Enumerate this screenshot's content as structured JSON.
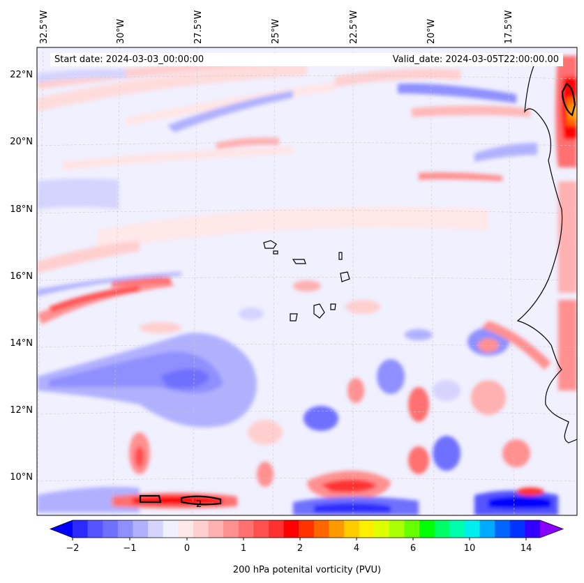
{
  "header": {
    "start_date": "Start date: 2024-03-03_00:00:00",
    "valid_date": "Valid_date: 2024-03-05T22:00:00.00"
  },
  "map": {
    "lon_labels": [
      "32.5°W",
      "30°W",
      "27.5°W",
      "25°W",
      "22.5°W",
      "20°W",
      "17.5°W"
    ],
    "lat_labels": [
      "22°N",
      "20°N",
      "18°N",
      "16°N",
      "14°N",
      "12°N",
      "10°N"
    ],
    "contour_label": "2"
  },
  "colorbar": {
    "title": "200 hPa potenital vorticity (PVU)",
    "ticks": [
      "−2",
      "−1",
      "0",
      "1",
      "2",
      "4",
      "6",
      "10",
      "14"
    ],
    "colors": [
      "#0000ff",
      "#2a2aff",
      "#5555ff",
      "#7070ff",
      "#8f8fff",
      "#b0b0ff",
      "#d4d4ff",
      "#f0f0ff",
      "#ffe8e8",
      "#ffcfcf",
      "#ffb0b0",
      "#ff9090",
      "#ff7070",
      "#ff5050",
      "#ff3030",
      "#ff0000",
      "#ff3300",
      "#ff6600",
      "#ff9900",
      "#ffcc00",
      "#ffee00",
      "#ddff00",
      "#aaff00",
      "#66ff00",
      "#00ff00",
      "#00ff66",
      "#00ffaa",
      "#00eeee",
      "#00aaff",
      "#0066ff",
      "#0033ff",
      "#3300ff",
      "#8800ff"
    ]
  }
}
